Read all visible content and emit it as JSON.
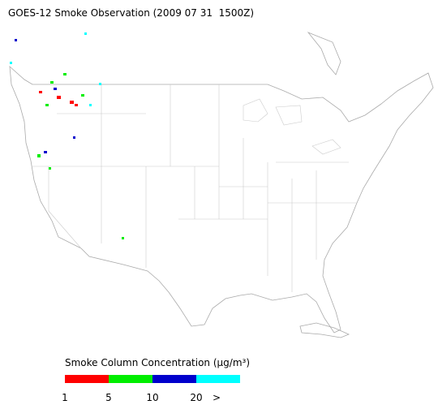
{
  "header": {
    "title": "GOES-12 Smoke Observation (2009 07 31  1500Z)"
  },
  "legend": {
    "title": "Smoke Column Concentration (μg/m³)",
    "colors": [
      "#ff0000",
      "#00ee00",
      "#0000cc",
      "#00ffff"
    ],
    "ticks": [
      "1",
      "5",
      "10",
      "20",
      ">"
    ]
  }
}
